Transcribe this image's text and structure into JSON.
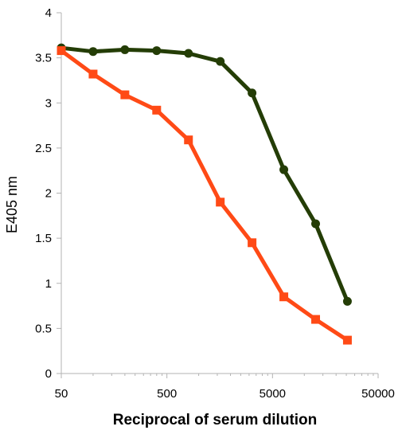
{
  "chart_data": {
    "type": "line",
    "title": "",
    "xlabel": "Reciprocal of serum dilution",
    "ylabel": "E405 nm",
    "xscale": "log",
    "xlim": [
      50,
      50000
    ],
    "ylim": [
      0,
      4
    ],
    "x_ticks": [
      "50",
      "500",
      "5000",
      "50000"
    ],
    "y_ticks": [
      "0",
      "0.5",
      "1",
      "1.5",
      "2",
      "2.5",
      "3",
      "3.5",
      "4"
    ],
    "grid": false,
    "legend": "none",
    "series": [
      {
        "color": "#243d06",
        "marker": "circle",
        "x": [
          50,
          100,
          200,
          400,
          800,
          1600,
          3200,
          6400,
          12800,
          25600
        ],
        "y": [
          3.61,
          3.57,
          3.59,
          3.58,
          3.55,
          3.46,
          3.11,
          2.26,
          1.66,
          0.8
        ]
      },
      {
        "color": "#ff4a16",
        "marker": "square",
        "x": [
          50,
          100,
          200,
          400,
          800,
          1600,
          3200,
          6400,
          12800,
          25600
        ],
        "y": [
          3.58,
          3.32,
          3.09,
          2.92,
          2.59,
          1.9,
          1.45,
          0.85,
          0.6,
          0.37
        ]
      }
    ]
  }
}
